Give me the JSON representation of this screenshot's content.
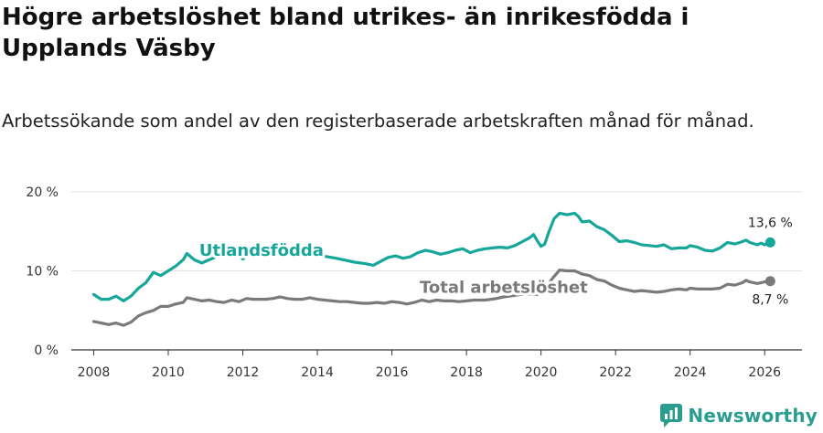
{
  "header": {
    "title": "Högre arbetslöshet bland utrikes- än inrikesfödda i Upplands Väsby",
    "subtitle": "Arbetssökande som andel av den registerbaserade arbetskraften månad för månad."
  },
  "brand": {
    "name": "Newsworthy"
  },
  "colors": {
    "foreign_born": "#16a79a",
    "total": "#7a7a7a",
    "grid": "#e2e2e2",
    "axis": "#333333"
  },
  "chart_data": {
    "type": "line",
    "title": "Högre arbetslöshet bland utrikes- än inrikesfödda i Upplands Väsby",
    "subtitle": "Arbetssökande som andel av den registerbaserade arbetskraften månad för månad.",
    "xlabel": "",
    "ylabel": "",
    "xlim": [
      2007.4,
      2027.0
    ],
    "ylim": [
      0,
      20
    ],
    "x_ticks": [
      2008,
      2010,
      2012,
      2014,
      2016,
      2018,
      2020,
      2022,
      2024,
      2026
    ],
    "y_ticks": [
      {
        "value": 0,
        "label": "0 %"
      },
      {
        "value": 10,
        "label": "10 %"
      },
      {
        "value": 20,
        "label": "20 %"
      }
    ],
    "grid": "horizontal",
    "series": [
      {
        "name": "Utlandsfödda",
        "color": "#16a79a",
        "label_at": [
          2012.5,
          11.9
        ],
        "end_label": "13,6 %",
        "points": [
          [
            2008.0,
            7.0
          ],
          [
            2008.2,
            6.4
          ],
          [
            2008.4,
            6.4
          ],
          [
            2008.6,
            6.8
          ],
          [
            2008.8,
            6.2
          ],
          [
            2009.0,
            6.8
          ],
          [
            2009.2,
            7.8
          ],
          [
            2009.4,
            8.5
          ],
          [
            2009.6,
            9.8
          ],
          [
            2009.8,
            9.4
          ],
          [
            2010.0,
            10.0
          ],
          [
            2010.2,
            10.6
          ],
          [
            2010.4,
            11.4
          ],
          [
            2010.5,
            12.2
          ],
          [
            2010.7,
            11.4
          ],
          [
            2010.9,
            11.0
          ],
          [
            2011.1,
            11.4
          ],
          [
            2011.3,
            11.8
          ],
          [
            2011.5,
            11.9
          ],
          [
            2011.7,
            12.0
          ],
          [
            2011.9,
            12.1
          ],
          [
            2012.0,
            11.5
          ],
          [
            2012.2,
            12.3
          ],
          [
            2012.4,
            12.8
          ],
          [
            2012.6,
            12.7
          ],
          [
            2013.0,
            12.6
          ],
          [
            2013.5,
            12.4
          ],
          [
            2014.0,
            12.0
          ],
          [
            2014.5,
            11.6
          ],
          [
            2015.0,
            11.1
          ],
          [
            2015.3,
            10.9
          ],
          [
            2015.5,
            10.7
          ],
          [
            2015.7,
            11.2
          ],
          [
            2015.9,
            11.7
          ],
          [
            2016.1,
            11.9
          ],
          [
            2016.3,
            11.6
          ],
          [
            2016.5,
            11.8
          ],
          [
            2016.7,
            12.3
          ],
          [
            2016.9,
            12.6
          ],
          [
            2017.1,
            12.4
          ],
          [
            2017.3,
            12.1
          ],
          [
            2017.5,
            12.3
          ],
          [
            2017.7,
            12.6
          ],
          [
            2017.9,
            12.8
          ],
          [
            2018.1,
            12.3
          ],
          [
            2018.3,
            12.6
          ],
          [
            2018.5,
            12.8
          ],
          [
            2018.7,
            12.9
          ],
          [
            2018.9,
            13.0
          ],
          [
            2019.1,
            12.9
          ],
          [
            2019.3,
            13.2
          ],
          [
            2019.5,
            13.7
          ],
          [
            2019.7,
            14.2
          ],
          [
            2019.8,
            14.6
          ],
          [
            2019.9,
            13.8
          ],
          [
            2020.0,
            13.1
          ],
          [
            2020.1,
            13.4
          ],
          [
            2020.2,
            14.8
          ],
          [
            2020.35,
            16.6
          ],
          [
            2020.5,
            17.3
          ],
          [
            2020.7,
            17.1
          ],
          [
            2020.9,
            17.3
          ],
          [
            2021.0,
            16.9
          ],
          [
            2021.1,
            16.2
          ],
          [
            2021.3,
            16.3
          ],
          [
            2021.5,
            15.6
          ],
          [
            2021.7,
            15.2
          ],
          [
            2021.9,
            14.5
          ],
          [
            2022.1,
            13.7
          ],
          [
            2022.3,
            13.8
          ],
          [
            2022.5,
            13.6
          ],
          [
            2022.7,
            13.3
          ],
          [
            2022.9,
            13.2
          ],
          [
            2023.1,
            13.1
          ],
          [
            2023.3,
            13.3
          ],
          [
            2023.5,
            12.8
          ],
          [
            2023.7,
            12.9
          ],
          [
            2023.9,
            12.9
          ],
          [
            2024.0,
            13.2
          ],
          [
            2024.2,
            13.0
          ],
          [
            2024.4,
            12.6
          ],
          [
            2024.6,
            12.5
          ],
          [
            2024.8,
            12.9
          ],
          [
            2025.0,
            13.6
          ],
          [
            2025.2,
            13.4
          ],
          [
            2025.4,
            13.7
          ],
          [
            2025.5,
            13.9
          ],
          [
            2025.6,
            13.6
          ],
          [
            2025.8,
            13.3
          ],
          [
            2025.9,
            13.5
          ],
          [
            2026.0,
            13.3
          ],
          [
            2026.15,
            13.6
          ]
        ]
      },
      {
        "name": "Total arbetslöshet",
        "color": "#7a7a7a",
        "label_at": [
          2019.0,
          7.2
        ],
        "end_label": "8,7 %",
        "points": [
          [
            2008.0,
            3.6
          ],
          [
            2008.2,
            3.4
          ],
          [
            2008.4,
            3.2
          ],
          [
            2008.6,
            3.4
          ],
          [
            2008.8,
            3.1
          ],
          [
            2009.0,
            3.5
          ],
          [
            2009.2,
            4.3
          ],
          [
            2009.4,
            4.7
          ],
          [
            2009.6,
            5.0
          ],
          [
            2009.8,
            5.5
          ],
          [
            2010.0,
            5.5
          ],
          [
            2010.2,
            5.8
          ],
          [
            2010.4,
            6.0
          ],
          [
            2010.5,
            6.6
          ],
          [
            2010.7,
            6.4
          ],
          [
            2010.9,
            6.2
          ],
          [
            2011.1,
            6.3
          ],
          [
            2011.3,
            6.1
          ],
          [
            2011.5,
            6.0
          ],
          [
            2011.7,
            6.3
          ],
          [
            2011.9,
            6.1
          ],
          [
            2012.1,
            6.5
          ],
          [
            2012.3,
            6.4
          ],
          [
            2012.6,
            6.4
          ],
          [
            2012.8,
            6.5
          ],
          [
            2013.0,
            6.7
          ],
          [
            2013.2,
            6.5
          ],
          [
            2013.4,
            6.4
          ],
          [
            2013.6,
            6.4
          ],
          [
            2013.8,
            6.6
          ],
          [
            2014.0,
            6.4
          ],
          [
            2014.2,
            6.3
          ],
          [
            2014.4,
            6.2
          ],
          [
            2014.6,
            6.1
          ],
          [
            2014.8,
            6.1
          ],
          [
            2015.0,
            6.0
          ],
          [
            2015.2,
            5.9
          ],
          [
            2015.4,
            5.9
          ],
          [
            2015.6,
            6.0
          ],
          [
            2015.8,
            5.9
          ],
          [
            2016.0,
            6.1
          ],
          [
            2016.2,
            6.0
          ],
          [
            2016.4,
            5.8
          ],
          [
            2016.6,
            6.0
          ],
          [
            2016.8,
            6.3
          ],
          [
            2017.0,
            6.1
          ],
          [
            2017.2,
            6.3
          ],
          [
            2017.4,
            6.2
          ],
          [
            2017.6,
            6.2
          ],
          [
            2017.8,
            6.1
          ],
          [
            2018.0,
            6.2
          ],
          [
            2018.2,
            6.3
          ],
          [
            2018.5,
            6.3
          ],
          [
            2018.8,
            6.5
          ],
          [
            2019.0,
            6.7
          ],
          [
            2019.3,
            6.9
          ],
          [
            2019.6,
            7.1
          ],
          [
            2019.9,
            7.0
          ],
          [
            2020.1,
            7.6
          ],
          [
            2020.3,
            9.0
          ],
          [
            2020.5,
            10.1
          ],
          [
            2020.7,
            10.0
          ],
          [
            2020.9,
            10.0
          ],
          [
            2021.1,
            9.6
          ],
          [
            2021.3,
            9.4
          ],
          [
            2021.5,
            8.9
          ],
          [
            2021.7,
            8.7
          ],
          [
            2021.9,
            8.2
          ],
          [
            2022.1,
            7.8
          ],
          [
            2022.3,
            7.6
          ],
          [
            2022.5,
            7.4
          ],
          [
            2022.7,
            7.5
          ],
          [
            2022.9,
            7.4
          ],
          [
            2023.1,
            7.3
          ],
          [
            2023.3,
            7.4
          ],
          [
            2023.5,
            7.6
          ],
          [
            2023.7,
            7.7
          ],
          [
            2023.9,
            7.6
          ],
          [
            2024.0,
            7.8
          ],
          [
            2024.2,
            7.7
          ],
          [
            2024.4,
            7.7
          ],
          [
            2024.6,
            7.7
          ],
          [
            2024.8,
            7.8
          ],
          [
            2025.0,
            8.3
          ],
          [
            2025.2,
            8.2
          ],
          [
            2025.4,
            8.5
          ],
          [
            2025.5,
            8.8
          ],
          [
            2025.6,
            8.6
          ],
          [
            2025.8,
            8.4
          ],
          [
            2025.9,
            8.5
          ],
          [
            2026.0,
            8.6
          ],
          [
            2026.15,
            8.7
          ]
        ]
      }
    ]
  }
}
